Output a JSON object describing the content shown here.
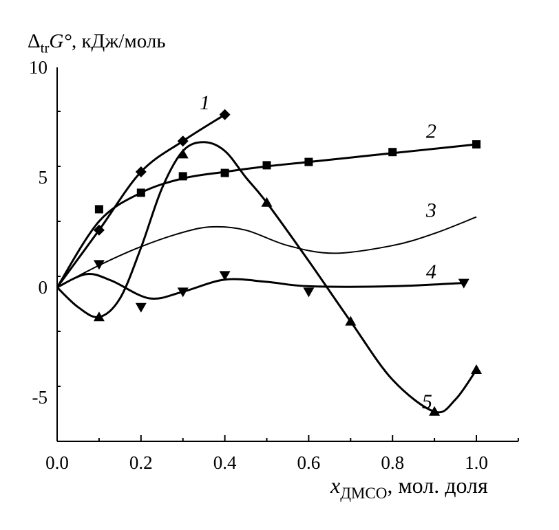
{
  "chart_data": {
    "type": "line",
    "title": "",
    "ylabel": {
      "delta": "Δ",
      "sub": "tr",
      "symbol": "G°",
      "unit": ", кДж/моль"
    },
    "xlabel": {
      "symbol": "x",
      "sub": "ДМСО",
      "unit": ", мол. доля"
    },
    "xlim": [
      0,
      1.1
    ],
    "ylim": [
      -7,
      10
    ],
    "xticks": [
      "0.0",
      "0.2",
      "0.4",
      "0.6",
      "0.8",
      "1.0"
    ],
    "xtick_values": [
      0,
      0.2,
      0.4,
      0.6,
      0.8,
      1.0
    ],
    "yticks": [
      "-5",
      "0",
      "5",
      "10"
    ],
    "ytick_values": [
      -5,
      0,
      5,
      10
    ],
    "grid": false,
    "series": [
      {
        "name": "1",
        "marker": "diamond",
        "points": [
          [
            0.1,
            2.6
          ],
          [
            0.2,
            5.25
          ],
          [
            0.3,
            6.65
          ],
          [
            0.4,
            7.85
          ]
        ],
        "curve": [
          [
            0,
            0
          ],
          [
            0.1,
            2.6
          ],
          [
            0.2,
            5.25
          ],
          [
            0.3,
            6.65
          ],
          [
            0.4,
            7.85
          ]
        ]
      },
      {
        "name": "2",
        "marker": "square",
        "points": [
          [
            0.1,
            3.55
          ],
          [
            0.2,
            4.3
          ],
          [
            0.3,
            5.05
          ],
          [
            0.4,
            5.2
          ],
          [
            0.5,
            5.55
          ],
          [
            0.6,
            5.7
          ],
          [
            0.8,
            6.15
          ],
          [
            1.0,
            6.5
          ]
        ],
        "curve": [
          [
            0,
            0
          ],
          [
            0.1,
            3.0
          ],
          [
            0.2,
            4.3
          ],
          [
            0.3,
            4.95
          ],
          [
            0.4,
            5.25
          ],
          [
            0.5,
            5.5
          ],
          [
            0.6,
            5.7
          ],
          [
            0.8,
            6.1
          ],
          [
            1.0,
            6.5
          ]
        ]
      },
      {
        "name": "3",
        "marker": "triangle-down",
        "points": [
          [
            0.1,
            1.05
          ]
        ],
        "curve": [
          [
            0,
            0
          ],
          [
            0.1,
            1.0
          ],
          [
            0.2,
            1.85
          ],
          [
            0.3,
            2.5
          ],
          [
            0.37,
            2.75
          ],
          [
            0.45,
            2.6
          ],
          [
            0.55,
            1.9
          ],
          [
            0.66,
            1.55
          ],
          [
            0.8,
            1.9
          ],
          [
            0.9,
            2.45
          ],
          [
            1.0,
            3.2
          ]
        ]
      },
      {
        "name": "4",
        "marker": "triangle-down",
        "points": [
          [
            0.2,
            -0.9
          ],
          [
            0.3,
            -0.2
          ],
          [
            0.4,
            0.55
          ],
          [
            0.6,
            -0.2
          ],
          [
            0.97,
            0.2
          ]
        ],
        "curve": [
          [
            0,
            0
          ],
          [
            0.07,
            0.6
          ],
          [
            0.13,
            0.3
          ],
          [
            0.22,
            -0.5
          ],
          [
            0.3,
            -0.2
          ],
          [
            0.4,
            0.35
          ],
          [
            0.5,
            0.25
          ],
          [
            0.6,
            0.05
          ],
          [
            0.8,
            0.05
          ],
          [
            0.97,
            0.2
          ]
        ]
      },
      {
        "name": "5",
        "marker": "triangle-up",
        "points": [
          [
            0.1,
            -1.35
          ],
          [
            0.3,
            6.05
          ],
          [
            0.5,
            3.85
          ],
          [
            0.7,
            -1.55
          ],
          [
            0.9,
            -5.65
          ],
          [
            1.0,
            -3.75
          ]
        ],
        "curve": [
          [
            0,
            0
          ],
          [
            0.05,
            -0.9
          ],
          [
            0.1,
            -1.35
          ],
          [
            0.15,
            -0.5
          ],
          [
            0.2,
            1.8
          ],
          [
            0.25,
            4.5
          ],
          [
            0.3,
            6.2
          ],
          [
            0.35,
            6.6
          ],
          [
            0.4,
            6.2
          ],
          [
            0.45,
            5.0
          ],
          [
            0.5,
            3.85
          ],
          [
            0.6,
            1.2
          ],
          [
            0.7,
            -1.55
          ],
          [
            0.8,
            -4.2
          ],
          [
            0.9,
            -5.65
          ],
          [
            0.95,
            -5.1
          ],
          [
            1.0,
            -3.75
          ]
        ]
      }
    ]
  }
}
